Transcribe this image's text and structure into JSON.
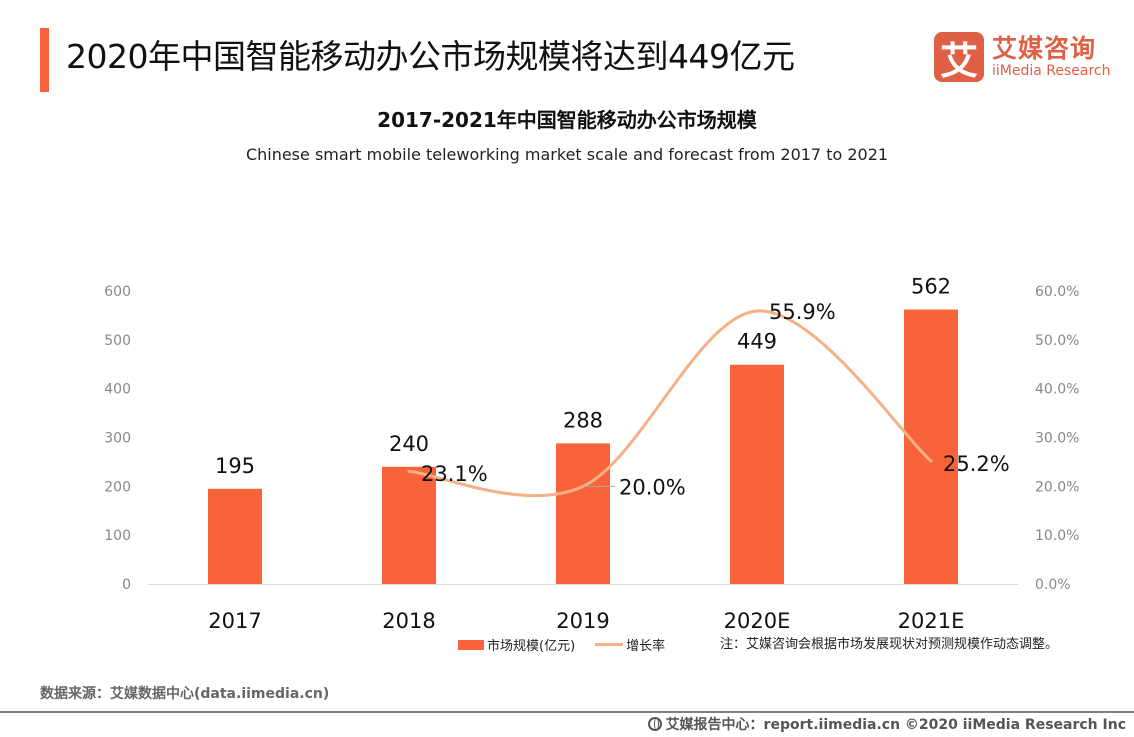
{
  "header": {
    "title": "2020年中国智能移动办公市场规模将达到449亿元",
    "logo": {
      "icon_char": "艾",
      "cn": "艾媒咨询",
      "en": "iiMedia Research"
    },
    "accent_color": "#f9633a"
  },
  "chart_data": {
    "type": "bar",
    "title": "2017-2021年中国智能移动办公市场规模",
    "subtitle": "Chinese smart mobile teleworking market scale and forecast from 2017 to 2021",
    "categories": [
      "2017",
      "2018",
      "2019",
      "2020E",
      "2021E"
    ],
    "series": [
      {
        "name": "市场规模(亿元)",
        "type": "bar",
        "axis": "left",
        "color": "#f9633a",
        "values": [
          195,
          240,
          288,
          449,
          562
        ],
        "labels": [
          "195",
          "240",
          "288",
          "449",
          "562"
        ]
      },
      {
        "name": "增长率",
        "type": "line",
        "axis": "right",
        "color": "#f5b086",
        "smooth": true,
        "values": [
          null,
          23.1,
          20.0,
          55.9,
          25.2
        ],
        "labels": [
          "",
          "23.1%",
          "20.0%",
          "55.9%",
          "25.2%"
        ]
      }
    ],
    "y_left": {
      "ylim": [
        0,
        600
      ],
      "ticks": [
        "0",
        "100",
        "200",
        "300",
        "400",
        "500",
        "600"
      ]
    },
    "y_right": {
      "ylim": [
        0,
        60
      ],
      "ticks": [
        "0.0%",
        "10.0%",
        "20.0%",
        "30.0%",
        "40.0%",
        "50.0%",
        "60.0%"
      ]
    },
    "xlabel": "",
    "ylabel": "",
    "grid": false,
    "legend_position": "bottom"
  },
  "legend": {
    "bar_label": "市场规模(亿元)",
    "line_label": "增长率"
  },
  "note": "注：艾媒咨询会根据市场发展现状对预测规模作动态调整。",
  "source": "数据来源：艾媒数据中心(data.iimedia.cn)",
  "footer": "艾媒报告中心：report.iimedia.cn   ©2020  iiMedia Research  Inc"
}
